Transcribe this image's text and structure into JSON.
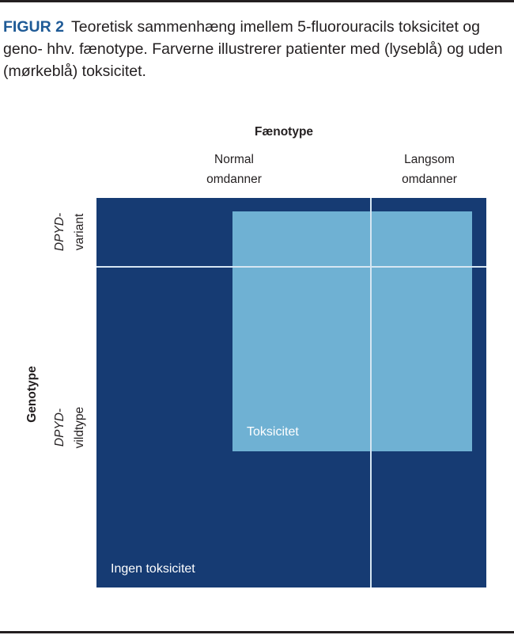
{
  "caption": {
    "label": "FIGUR 2",
    "text": "Teoretisk sammenhæng imellem 5-fluorouracils toksicitet og geno- hhv. fænotype. Farverne illustrerer patienter med (lyseblå) og uden (mørkeblå) toksicitet."
  },
  "phenotype": {
    "title": "Fænotype",
    "columns": [
      {
        "line1": "Normal",
        "line2": "omdanner"
      },
      {
        "line1": "Langsom",
        "line2": "omdanner"
      }
    ]
  },
  "genotype": {
    "title": "Genotype",
    "rows": [
      {
        "gene": "DPYD-",
        "sub": "variant"
      },
      {
        "gene": "DPYD-",
        "sub": "vildtype"
      }
    ]
  },
  "regions": {
    "toxic_label": "Toksicitet",
    "non_toxic_label": "Ingen toksicitet"
  },
  "colors": {
    "dark_blue": "#163b73",
    "light_blue": "#6fb1d3",
    "caption_label": "#1e5a96"
  }
}
